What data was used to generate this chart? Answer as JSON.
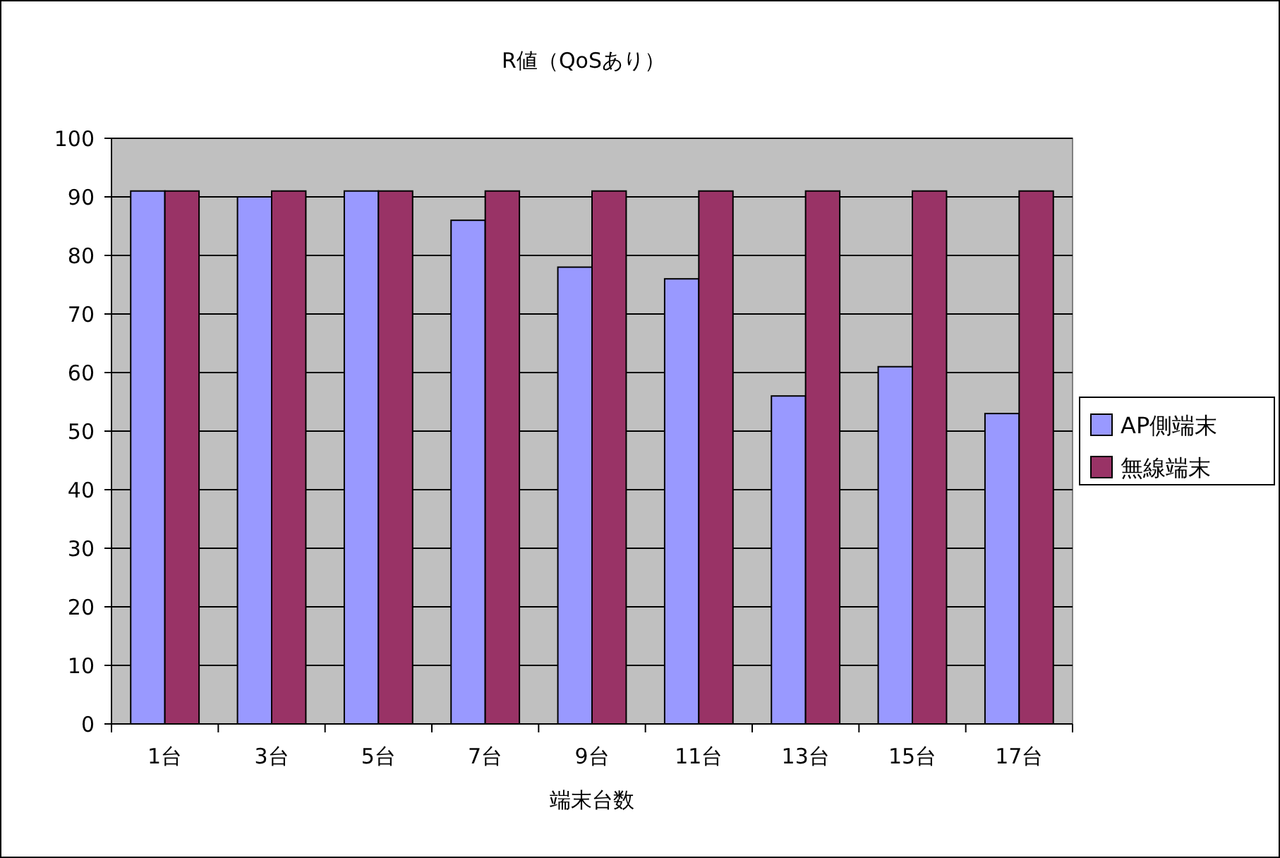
{
  "chart_data": {
    "type": "bar",
    "title": "R値（QoSあり）",
    "xlabel": "端末台数",
    "categories": [
      "1台",
      "3台",
      "5台",
      "7台",
      "9台",
      "11台",
      "13台",
      "15台",
      "17台"
    ],
    "series": [
      {
        "name": "AP側端末",
        "color": "#9999ff",
        "values": [
          91,
          90,
          91,
          86,
          78,
          76,
          56,
          61,
          53
        ]
      },
      {
        "name": "無線端末",
        "color": "#993366",
        "values": [
          91,
          91,
          91,
          91,
          91,
          91,
          91,
          91,
          91
        ]
      }
    ],
    "ylim": [
      0,
      100
    ],
    "yticks": [
      0,
      10,
      20,
      30,
      40,
      50,
      60,
      70,
      80,
      90,
      100
    ],
    "grid": "y",
    "legend": "right"
  }
}
